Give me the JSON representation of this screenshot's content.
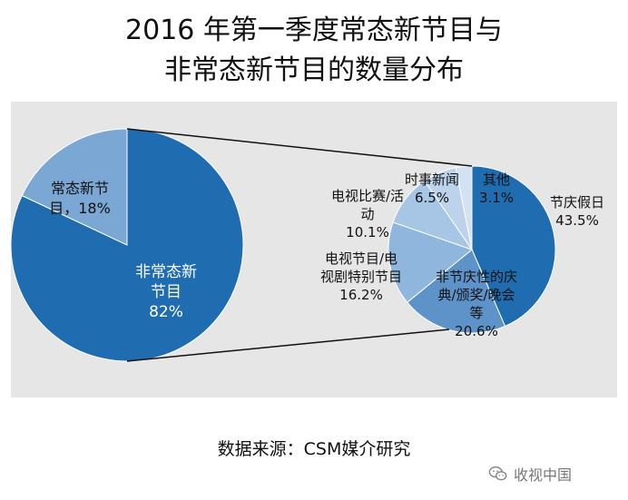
{
  "title_lines": [
    "2016 年第一季度常态新节目与",
    "非常态新节目的数量分布"
  ],
  "source": "数据来源：CSM媒介研究",
  "watermark": {
    "text": "收视中国",
    "icon": "wechat-icon"
  },
  "colors": {
    "panel_bg": "#e6e6e6",
    "dark_blue": "#1f6cb0",
    "light_blue": "#7aa7d3",
    "slice_3": "#8fb6dc",
    "slice_4": "#a7c5e5",
    "slice_5": "#bdd3ec",
    "slice_6": "#d2e1f3"
  },
  "chart_data": [
    {
      "type": "pie",
      "slices": [
        {
          "label_lines": [
            "非常态新",
            "节目",
            "82%"
          ],
          "value": 82,
          "color": "#1f6cb0"
        },
        {
          "label_lines": [
            "常态新节",
            "目，18%"
          ],
          "value": 18,
          "color": "#7aa7d3"
        }
      ]
    },
    {
      "type": "pie",
      "slices": [
        {
          "label_lines": [
            "节庆假日",
            "43.5%"
          ],
          "value": 43.5,
          "color": "#1f6cb0"
        },
        {
          "label_lines": [
            "非节庆性的庆",
            "典/颁奖/晚会",
            "等",
            "20.6%"
          ],
          "value": 20.6,
          "color": "#5d93c8"
        },
        {
          "label_lines": [
            "电视节目/电",
            "视剧特别节目",
            "16.2%"
          ],
          "value": 16.2,
          "color": "#8fb6dc"
        },
        {
          "label_lines": [
            "电视比赛/活",
            "动",
            "10.1%"
          ],
          "value": 10.1,
          "color": "#a7c5e5"
        },
        {
          "label_lines": [
            "时事新闻",
            "6.5%"
          ],
          "value": 6.5,
          "color": "#bdd3ec"
        },
        {
          "label_lines": [
            "其他",
            "3.1%"
          ],
          "value": 3.1,
          "color": "#d2e1f3"
        }
      ]
    }
  ]
}
